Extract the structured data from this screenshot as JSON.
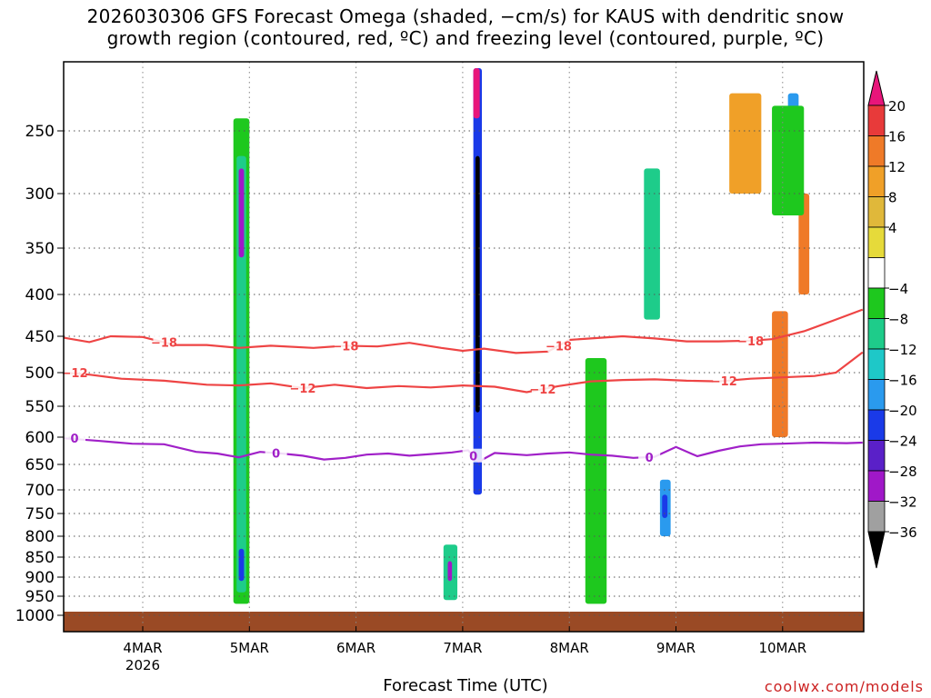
{
  "chart_data": {
    "type": "heatmap",
    "title_line1": "2026030306 GFS Forecast Omega (shaded, −cm/s) for KAUS with dendritic snow",
    "title_line2": "growth region (contoured, red, ºC) and freezing level (contoured, purple, ºC)",
    "xlabel": "Forecast Time (UTC)",
    "ylabel": "",
    "credit": "coolwx.com/models",
    "y_ticks": [
      250,
      300,
      350,
      400,
      450,
      500,
      550,
      600,
      650,
      700,
      750,
      800,
      850,
      900,
      950,
      1000
    ],
    "y_tick_labels": [
      "250",
      "300",
      "350",
      "400",
      "450",
      "500",
      "550",
      "600",
      "650",
      "700",
      "750",
      "800",
      "850",
      "900",
      "950",
      "1000"
    ],
    "ylim_hpa": [
      200,
      1025
    ],
    "x_ticks": [
      {
        "day": 4,
        "label": "4MAR",
        "sublabel": "2026"
      },
      {
        "day": 5,
        "label": "5MAR",
        "sublabel": ""
      },
      {
        "day": 6,
        "label": "6MAR",
        "sublabel": ""
      },
      {
        "day": 7,
        "label": "7MAR",
        "sublabel": ""
      },
      {
        "day": 8,
        "label": "8MAR",
        "sublabel": ""
      },
      {
        "day": 9,
        "label": "9MAR",
        "sublabel": ""
      },
      {
        "day": 10,
        "label": "10MAR",
        "sublabel": ""
      }
    ],
    "xlim_day": [
      3.25,
      10.75
    ],
    "colorbar": {
      "labels": [
        "20",
        "16",
        "12",
        "8",
        "4",
        "−4",
        "−8",
        "−12",
        "−16",
        "−20",
        "−24",
        "−28",
        "−32",
        "−36"
      ],
      "colors": [
        "#e8157a",
        "#e83a3a",
        "#ef7a28",
        "#f0a028",
        "#e0b83a",
        "#e6da3a",
        "#ffffff",
        "#1ec81e",
        "#1ecc8a",
        "#1ec8c8",
        "#2a9aee",
        "#1a3ae8",
        "#5a20c8",
        "#a018c8",
        "#a0a0a0",
        "#000000"
      ]
    },
    "contours": [
      {
        "name": "-18",
        "color": "#ee4444",
        "label": "−18",
        "points": [
          [
            3.25,
            452
          ],
          [
            3.5,
            458
          ],
          [
            3.7,
            450
          ],
          [
            4.0,
            451
          ],
          [
            4.3,
            462
          ],
          [
            4.6,
            462
          ],
          [
            4.9,
            466
          ],
          [
            5.2,
            463
          ],
          [
            5.6,
            466
          ],
          [
            5.9,
            463
          ],
          [
            6.2,
            464
          ],
          [
            6.5,
            459
          ],
          [
            6.8,
            466
          ],
          [
            7.0,
            470
          ],
          [
            7.2,
            467
          ],
          [
            7.5,
            473
          ],
          [
            7.8,
            471
          ],
          [
            8.0,
            455
          ],
          [
            8.2,
            453
          ],
          [
            8.5,
            450
          ],
          [
            8.8,
            453
          ],
          [
            9.1,
            457
          ],
          [
            9.4,
            457
          ],
          [
            9.7,
            456
          ],
          [
            9.9,
            454
          ],
          [
            10.2,
            444
          ],
          [
            10.5,
            430
          ],
          [
            10.75,
            418
          ]
        ],
        "labels_at": [
          4.2,
          5.9,
          7.9,
          9.7
        ]
      },
      {
        "name": "-12",
        "color": "#ee4444",
        "label": "−12",
        "points": [
          [
            3.25,
            500
          ],
          [
            3.5,
            503
          ],
          [
            3.8,
            509
          ],
          [
            4.2,
            512
          ],
          [
            4.6,
            518
          ],
          [
            4.9,
            519
          ],
          [
            5.2,
            516
          ],
          [
            5.5,
            523
          ],
          [
            5.8,
            518
          ],
          [
            6.1,
            523
          ],
          [
            6.4,
            520
          ],
          [
            6.7,
            522
          ],
          [
            7.0,
            519
          ],
          [
            7.3,
            521
          ],
          [
            7.6,
            529
          ],
          [
            7.9,
            520
          ],
          [
            8.2,
            513
          ],
          [
            8.5,
            511
          ],
          [
            8.8,
            510
          ],
          [
            9.1,
            512
          ],
          [
            9.4,
            513
          ],
          [
            9.7,
            509
          ],
          [
            10.0,
            507
          ],
          [
            10.3,
            505
          ],
          [
            10.5,
            500
          ],
          [
            10.75,
            472
          ]
        ],
        "labels_at": [
          3.25,
          5.5,
          7.75,
          9.45
        ]
      },
      {
        "name": "0",
        "color": "#a020c8",
        "label": "0",
        "points": [
          [
            3.25,
            602
          ],
          [
            3.6,
            607
          ],
          [
            3.9,
            612
          ],
          [
            4.2,
            613
          ],
          [
            4.5,
            627
          ],
          [
            4.7,
            630
          ],
          [
            4.9,
            637
          ],
          [
            5.1,
            627
          ],
          [
            5.3,
            630
          ],
          [
            5.5,
            634
          ],
          [
            5.7,
            641
          ],
          [
            5.9,
            638
          ],
          [
            6.1,
            632
          ],
          [
            6.3,
            630
          ],
          [
            6.5,
            634
          ],
          [
            6.7,
            631
          ],
          [
            6.9,
            628
          ],
          [
            7.05,
            624
          ],
          [
            7.15,
            645
          ],
          [
            7.3,
            629
          ],
          [
            7.6,
            633
          ],
          [
            7.8,
            630
          ],
          [
            8.0,
            628
          ],
          [
            8.2,
            632
          ],
          [
            8.4,
            634
          ],
          [
            8.6,
            638
          ],
          [
            8.8,
            636
          ],
          [
            9.0,
            618
          ],
          [
            9.2,
            635
          ],
          [
            9.4,
            625
          ],
          [
            9.6,
            617
          ],
          [
            9.8,
            613
          ],
          [
            10.0,
            612
          ],
          [
            10.3,
            610
          ],
          [
            10.6,
            611
          ],
          [
            10.75,
            610
          ]
        ],
        "labels_at": [
          3.25,
          5.25,
          7.1,
          8.75
        ]
      }
    ],
    "shaded_regions": [
      {
        "x": [
          4.85,
          5.0
        ],
        "p": [
          240,
          970
        ],
        "level": "-8"
      },
      {
        "x": [
          4.88,
          4.97
        ],
        "p": [
          270,
          940
        ],
        "level": "-12"
      },
      {
        "x": [
          4.9,
          4.95
        ],
        "p": [
          280,
          360
        ],
        "level": "-28"
      },
      {
        "x": [
          4.9,
          4.95
        ],
        "p": [
          830,
          910
        ],
        "level": "-20"
      },
      {
        "x": [
          7.1,
          7.18
        ],
        "p": [
          200,
          710
        ],
        "level": "-20"
      },
      {
        "x": [
          7.12,
          7.16
        ],
        "p": [
          270,
          560
        ],
        "level": "-36"
      },
      {
        "x": [
          7.1,
          7.16
        ],
        "p": [
          200,
          240
        ],
        "level": "20"
      },
      {
        "x": [
          6.82,
          6.95
        ],
        "p": [
          820,
          960
        ],
        "level": "-12"
      },
      {
        "x": [
          6.86,
          6.9
        ],
        "p": [
          860,
          910
        ],
        "level": "-28"
      },
      {
        "x": [
          8.15,
          8.35
        ],
        "p": [
          480,
          970
        ],
        "level": "-8"
      },
      {
        "x": [
          8.85,
          8.95
        ],
        "p": [
          680,
          800
        ],
        "level": "-16"
      },
      {
        "x": [
          8.87,
          8.92
        ],
        "p": [
          710,
          760
        ],
        "level": "-24"
      },
      {
        "x": [
          8.7,
          8.85
        ],
        "p": [
          280,
          430
        ],
        "level": "-12"
      },
      {
        "x": [
          10.05,
          10.15
        ],
        "p": [
          220,
          320
        ],
        "level": "-16"
      },
      {
        "x": [
          10.08,
          10.12
        ],
        "p": [
          260,
          290
        ],
        "level": "-24"
      },
      {
        "x": [
          9.9,
          10.05
        ],
        "p": [
          420,
          600
        ],
        "level": "12"
      },
      {
        "x": [
          10.15,
          10.25
        ],
        "p": [
          300,
          400
        ],
        "level": "12"
      },
      {
        "x": [
          9.5,
          9.8
        ],
        "p": [
          220,
          300
        ],
        "level": "8"
      },
      {
        "x": [
          9.9,
          10.2
        ],
        "p": [
          230,
          320
        ],
        "level": "-8"
      }
    ]
  }
}
